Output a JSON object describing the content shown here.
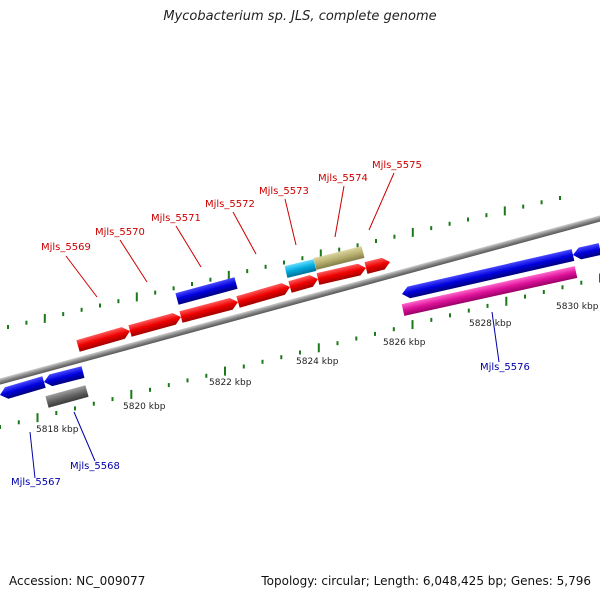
{
  "title": "Mycobacterium sp. JLS, complete genome",
  "footer": {
    "accession": "Accession: NC_009077",
    "summary": "Topology: circular; Length: 6,048,425 bp; Genes: 5,796"
  },
  "colors": {
    "backbone": "#888888",
    "tick": "#1a7a1a",
    "forward_gene": "#ee0000",
    "reverse_gene": "#0000dd",
    "label_forward": "#cc0000",
    "label_reverse": "#0000aa",
    "kbp_label": "#222222"
  },
  "scale_labels": [
    "5818 kbp",
    "5820 kbp",
    "5822 kbp",
    "5824 kbp",
    "5826 kbp",
    "5828 kbp",
    "5830 kbp"
  ],
  "gene_labels_top": [
    "Mjls_5569",
    "Mjls_5570",
    "Mjls_5571",
    "Mjls_5572",
    "Mjls_5573",
    "Mjls_5574",
    "Mjls_5575"
  ],
  "gene_labels_bottom": [
    "Mjls_5567",
    "Mjls_5568",
    "Mjls_5576"
  ],
  "gene_fill_colors": {
    "red": "#ee0000",
    "blue": "#0000dd",
    "cyan": "#00aadd",
    "olive": "#b8b070",
    "gray": "#666666",
    "magenta": "#dd1199"
  }
}
